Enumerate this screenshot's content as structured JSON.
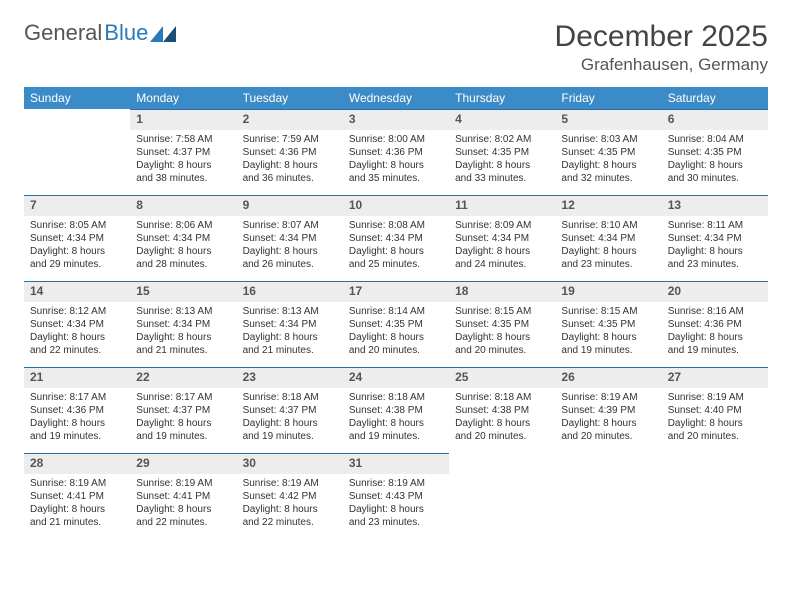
{
  "brand": {
    "name1": "General",
    "name2": "Blue"
  },
  "title": "December 2025",
  "location": "Grafenhausen, Germany",
  "colors": {
    "header_bg": "#3b8bc8",
    "header_text": "#ffffff",
    "daynum_bg": "#ededed",
    "daynum_border": "#2a6fa3",
    "text": "#333333",
    "brand_blue": "#2a7ab9"
  },
  "columns": [
    "Sunday",
    "Monday",
    "Tuesday",
    "Wednesday",
    "Thursday",
    "Friday",
    "Saturday"
  ],
  "weeks": [
    [
      null,
      {
        "n": "1",
        "sr": "Sunrise: 7:58 AM",
        "ss": "Sunset: 4:37 PM",
        "d1": "Daylight: 8 hours",
        "d2": "and 38 minutes."
      },
      {
        "n": "2",
        "sr": "Sunrise: 7:59 AM",
        "ss": "Sunset: 4:36 PM",
        "d1": "Daylight: 8 hours",
        "d2": "and 36 minutes."
      },
      {
        "n": "3",
        "sr": "Sunrise: 8:00 AM",
        "ss": "Sunset: 4:36 PM",
        "d1": "Daylight: 8 hours",
        "d2": "and 35 minutes."
      },
      {
        "n": "4",
        "sr": "Sunrise: 8:02 AM",
        "ss": "Sunset: 4:35 PM",
        "d1": "Daylight: 8 hours",
        "d2": "and 33 minutes."
      },
      {
        "n": "5",
        "sr": "Sunrise: 8:03 AM",
        "ss": "Sunset: 4:35 PM",
        "d1": "Daylight: 8 hours",
        "d2": "and 32 minutes."
      },
      {
        "n": "6",
        "sr": "Sunrise: 8:04 AM",
        "ss": "Sunset: 4:35 PM",
        "d1": "Daylight: 8 hours",
        "d2": "and 30 minutes."
      }
    ],
    [
      {
        "n": "7",
        "sr": "Sunrise: 8:05 AM",
        "ss": "Sunset: 4:34 PM",
        "d1": "Daylight: 8 hours",
        "d2": "and 29 minutes."
      },
      {
        "n": "8",
        "sr": "Sunrise: 8:06 AM",
        "ss": "Sunset: 4:34 PM",
        "d1": "Daylight: 8 hours",
        "d2": "and 28 minutes."
      },
      {
        "n": "9",
        "sr": "Sunrise: 8:07 AM",
        "ss": "Sunset: 4:34 PM",
        "d1": "Daylight: 8 hours",
        "d2": "and 26 minutes."
      },
      {
        "n": "10",
        "sr": "Sunrise: 8:08 AM",
        "ss": "Sunset: 4:34 PM",
        "d1": "Daylight: 8 hours",
        "d2": "and 25 minutes."
      },
      {
        "n": "11",
        "sr": "Sunrise: 8:09 AM",
        "ss": "Sunset: 4:34 PM",
        "d1": "Daylight: 8 hours",
        "d2": "and 24 minutes."
      },
      {
        "n": "12",
        "sr": "Sunrise: 8:10 AM",
        "ss": "Sunset: 4:34 PM",
        "d1": "Daylight: 8 hours",
        "d2": "and 23 minutes."
      },
      {
        "n": "13",
        "sr": "Sunrise: 8:11 AM",
        "ss": "Sunset: 4:34 PM",
        "d1": "Daylight: 8 hours",
        "d2": "and 23 minutes."
      }
    ],
    [
      {
        "n": "14",
        "sr": "Sunrise: 8:12 AM",
        "ss": "Sunset: 4:34 PM",
        "d1": "Daylight: 8 hours",
        "d2": "and 22 minutes."
      },
      {
        "n": "15",
        "sr": "Sunrise: 8:13 AM",
        "ss": "Sunset: 4:34 PM",
        "d1": "Daylight: 8 hours",
        "d2": "and 21 minutes."
      },
      {
        "n": "16",
        "sr": "Sunrise: 8:13 AM",
        "ss": "Sunset: 4:34 PM",
        "d1": "Daylight: 8 hours",
        "d2": "and 21 minutes."
      },
      {
        "n": "17",
        "sr": "Sunrise: 8:14 AM",
        "ss": "Sunset: 4:35 PM",
        "d1": "Daylight: 8 hours",
        "d2": "and 20 minutes."
      },
      {
        "n": "18",
        "sr": "Sunrise: 8:15 AM",
        "ss": "Sunset: 4:35 PM",
        "d1": "Daylight: 8 hours",
        "d2": "and 20 minutes."
      },
      {
        "n": "19",
        "sr": "Sunrise: 8:15 AM",
        "ss": "Sunset: 4:35 PM",
        "d1": "Daylight: 8 hours",
        "d2": "and 19 minutes."
      },
      {
        "n": "20",
        "sr": "Sunrise: 8:16 AM",
        "ss": "Sunset: 4:36 PM",
        "d1": "Daylight: 8 hours",
        "d2": "and 19 minutes."
      }
    ],
    [
      {
        "n": "21",
        "sr": "Sunrise: 8:17 AM",
        "ss": "Sunset: 4:36 PM",
        "d1": "Daylight: 8 hours",
        "d2": "and 19 minutes."
      },
      {
        "n": "22",
        "sr": "Sunrise: 8:17 AM",
        "ss": "Sunset: 4:37 PM",
        "d1": "Daylight: 8 hours",
        "d2": "and 19 minutes."
      },
      {
        "n": "23",
        "sr": "Sunrise: 8:18 AM",
        "ss": "Sunset: 4:37 PM",
        "d1": "Daylight: 8 hours",
        "d2": "and 19 minutes."
      },
      {
        "n": "24",
        "sr": "Sunrise: 8:18 AM",
        "ss": "Sunset: 4:38 PM",
        "d1": "Daylight: 8 hours",
        "d2": "and 19 minutes."
      },
      {
        "n": "25",
        "sr": "Sunrise: 8:18 AM",
        "ss": "Sunset: 4:38 PM",
        "d1": "Daylight: 8 hours",
        "d2": "and 20 minutes."
      },
      {
        "n": "26",
        "sr": "Sunrise: 8:19 AM",
        "ss": "Sunset: 4:39 PM",
        "d1": "Daylight: 8 hours",
        "d2": "and 20 minutes."
      },
      {
        "n": "27",
        "sr": "Sunrise: 8:19 AM",
        "ss": "Sunset: 4:40 PM",
        "d1": "Daylight: 8 hours",
        "d2": "and 20 minutes."
      }
    ],
    [
      {
        "n": "28",
        "sr": "Sunrise: 8:19 AM",
        "ss": "Sunset: 4:41 PM",
        "d1": "Daylight: 8 hours",
        "d2": "and 21 minutes."
      },
      {
        "n": "29",
        "sr": "Sunrise: 8:19 AM",
        "ss": "Sunset: 4:41 PM",
        "d1": "Daylight: 8 hours",
        "d2": "and 22 minutes."
      },
      {
        "n": "30",
        "sr": "Sunrise: 8:19 AM",
        "ss": "Sunset: 4:42 PM",
        "d1": "Daylight: 8 hours",
        "d2": "and 22 minutes."
      },
      {
        "n": "31",
        "sr": "Sunrise: 8:19 AM",
        "ss": "Sunset: 4:43 PM",
        "d1": "Daylight: 8 hours",
        "d2": "and 23 minutes."
      },
      null,
      null,
      null
    ]
  ]
}
